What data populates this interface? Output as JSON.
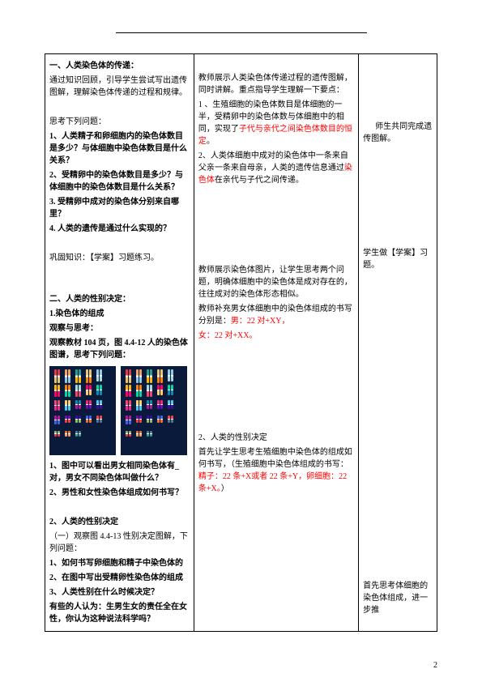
{
  "section1": {
    "title": "一、人类染色体的传递：",
    "intro": "通过知识回顾，引导学生尝试写出遗传图解，理解染色体传递的过程和规律。",
    "think_header": "思考下列问题：",
    "q1": "1、人类精子和卵细胞内的染色体数目是多少？与体细胞中染色体数目是什么关系？",
    "q2": "2、受精卵中的染色体数目是多少？与体细胞中的染色体数目是什么关系？",
    "q3": "3. 受精卵中成对的染色体分别来自哪里？",
    "q4": "4. 人类的遗传是通过什么实现的？",
    "consolidate": "巩固知识：【学案】习题练习。"
  },
  "section2": {
    "title": "二、人类的性别决定：",
    "sub1": "1.染色体的组成",
    "observe_header": "观察与思考：",
    "observe_text": "观察教材 104 页，图 4.4-12 人的染色体图谱，思考下列问题：",
    "chromo_q1a": "1、图中可以看出男女相同染色体有_对，男女不同染色体叫做什么？",
    "chromo_q2": "2、男性和女性染色体组成如何书写？",
    "sub2": "2、人类的性别决定",
    "sub2_obs": "（一）观察图 4.4-13 性别决定图解，下列问题：",
    "sub2_q1": "1、如何书写卵细胞和精子中染色体的",
    "sub2_q2": "2、在图中写出受精卵性染色体的组成",
    "sub2_q3": "3、人类性别在什么时候决定？",
    "sub2_q4": "有些的人认为：生男生女的责任全在女性，你认为这种说法科学吗？"
  },
  "teacher": {
    "p1": "教师展示人类染色体传递过程的遗传图解，同时讲解。重点指导学生理解一下要点：",
    "p2_pre": "1 、生殖细胞的染色体数目是体细胞的一半，受精卵中的染色体数与体细胞中的相同，实现了",
    "p2_red": "子代与亲代之间染色体数目的恒定",
    "p2_post": "。",
    "p3_pre": "2、人类体细胞中成对的染色体中一条来自父亲一条来自母亲，人类的遗传信息通过",
    "p3_red": "染色体",
    "p3_post": "在亲代与子代之间传递。",
    "chromo_p1": "教师展示染色体图片，让学生思考两个问题，明确体细胞中的染色体是成对存在的，往往成对的染色体形态相似。",
    "chromo_p2": "教师补充男女体细胞中的染色体组成的书写分别是：",
    "chromo_male": "男：22 对+XY，",
    "chromo_female": "女：22 对+XX。",
    "sex_title": "2、人类的性别决定",
    "sex_p1": "首先让学生思考生殖细胞中染色体的组成如何书写，（生殖细胞中染色体组成的书写：",
    "sex_sperm": "精子：22 条+X或者 22 条+Y，卵细胞：22 条+X。",
    "sex_p1_post": "）"
  },
  "student": {
    "s1": "师生共同完成遗传图解。",
    "s2": "学生做【学案】习题。",
    "s3": "首先思考体细胞的染色体组成，进一步推"
  },
  "chromo_colors": [
    "#e63946",
    "#f4a261",
    "#2a9d8f",
    "#e9c46a",
    "#8ecae6",
    "#ffb703",
    "#fb8500",
    "#a8dadc",
    "#ff006e",
    "#06d6a0",
    "#ef476f",
    "#ffd166",
    "#118ab2",
    "#f72585",
    "#4cc9f0",
    "#b5179e",
    "#7209b7",
    "#3a0ca3",
    "#4361ee",
    "#f94144",
    "#90be6d",
    "#f3722c",
    "#577590"
  ],
  "page_number": "2"
}
